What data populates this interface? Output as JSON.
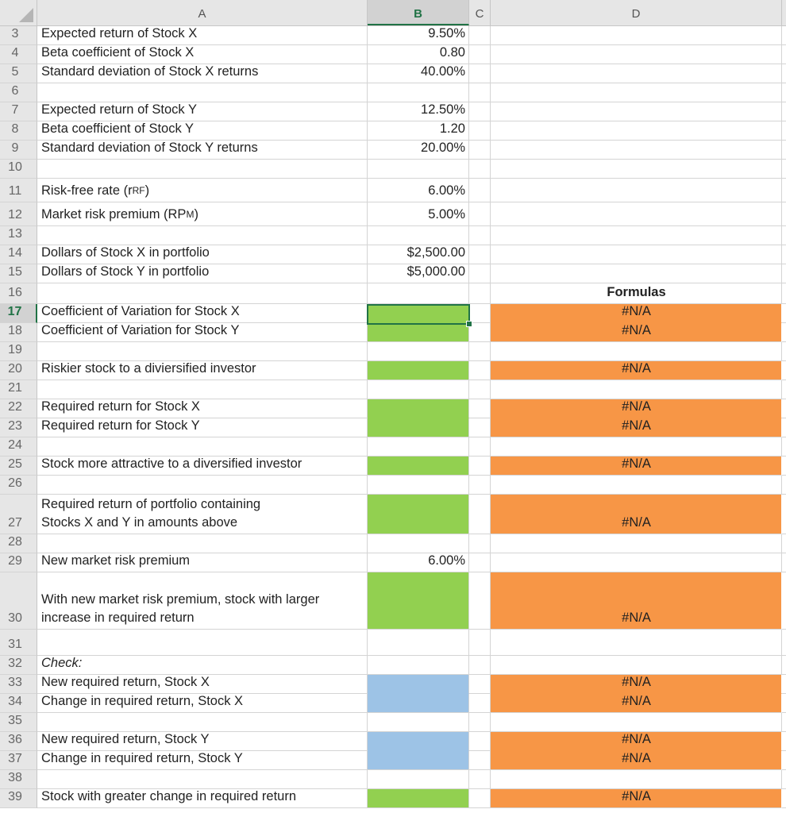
{
  "columns": [
    "A",
    "B",
    "C",
    "D"
  ],
  "selected_cell": {
    "row": 17,
    "col": "B"
  },
  "colors": {
    "green": "#92D050",
    "orange": "#F79646",
    "blue": "#9DC3E6",
    "selection": "#217346"
  },
  "rows": [
    {
      "n": 3,
      "h": 24,
      "a": "Expected return of Stock X",
      "b": "9.50%"
    },
    {
      "n": 4,
      "h": 24,
      "a": "Beta coefficient of Stock X",
      "b": "0.80"
    },
    {
      "n": 5,
      "h": 24,
      "a": "Standard deviation of Stock X returns",
      "b": "40.00%"
    },
    {
      "n": 6,
      "h": 24
    },
    {
      "n": 7,
      "h": 24,
      "a": "Expected return of Stock Y",
      "b": "12.50%"
    },
    {
      "n": 8,
      "h": 24,
      "a": "Beta coefficient of Stock Y",
      "b": "1.20"
    },
    {
      "n": 9,
      "h": 24,
      "a": "Standard deviation of Stock Y returns",
      "b": "20.00%"
    },
    {
      "n": 10,
      "h": 24
    },
    {
      "n": 11,
      "h": 30,
      "a": "Risk-free rate (r",
      "a_sub": "RF",
      "a_end": ")",
      "b": "6.00%"
    },
    {
      "n": 12,
      "h": 30,
      "a": "Market risk premium (RP",
      "a_sub": "M",
      "a_end": ")",
      "b": "5.00%"
    },
    {
      "n": 13,
      "h": 24
    },
    {
      "n": 14,
      "h": 24,
      "a": "Dollars of Stock X in portfolio",
      "b": "$2,500.00"
    },
    {
      "n": 15,
      "h": 24,
      "a": "Dollars of Stock Y in portfolio",
      "b": "$5,000.00"
    },
    {
      "n": 16,
      "h": 26,
      "d": "Formulas",
      "d_bold": true
    },
    {
      "n": 17,
      "h": 24,
      "a": "Coefficient of Variation for Stock X",
      "bfill": "green",
      "d": "#N/A",
      "dfill": "orange"
    },
    {
      "n": 18,
      "h": 24,
      "a": "Coefficient of Variation for Stock Y",
      "bfill": "green",
      "d": "#N/A",
      "dfill": "orange"
    },
    {
      "n": 19,
      "h": 24
    },
    {
      "n": 20,
      "h": 24,
      "a": "Riskier stock to a diviersified investor",
      "bfill": "green",
      "d": "#N/A",
      "dfill": "orange"
    },
    {
      "n": 21,
      "h": 24
    },
    {
      "n": 22,
      "h": 24,
      "a": "Required return for Stock X",
      "bfill": "green",
      "d": "#N/A",
      "dfill": "orange"
    },
    {
      "n": 23,
      "h": 24,
      "a": "Required return for Stock Y",
      "bfill": "green",
      "d": "#N/A",
      "dfill": "orange"
    },
    {
      "n": 24,
      "h": 24
    },
    {
      "n": 25,
      "h": 24,
      "a": "Stock more attractive to a diversified investor",
      "bfill": "green",
      "d": "#N/A",
      "dfill": "orange"
    },
    {
      "n": 26,
      "h": 24
    },
    {
      "n": 27,
      "h": 50,
      "a": "Required return of portfolio containing\nStocks X and Y in amounts above",
      "bfill": "green",
      "d": "#N/A",
      "dfill": "orange"
    },
    {
      "n": 28,
      "h": 24
    },
    {
      "n": 29,
      "h": 24,
      "a": "New market risk premium",
      "b": "6.00%"
    },
    {
      "n": 30,
      "h": 72,
      "a": "With new market risk premium, stock with larger\nincrease in required return",
      "bfill": "green",
      "d": "#N/A",
      "dfill": "orange"
    },
    {
      "n": 31,
      "h": 33
    },
    {
      "n": 32,
      "h": 24,
      "a": "Check:",
      "a_italic": true
    },
    {
      "n": 33,
      "h": 24,
      "a": "New required return, Stock X",
      "bfill": "blue",
      "d": "#N/A",
      "dfill": "orange"
    },
    {
      "n": 34,
      "h": 24,
      "a": "Change in required return, Stock X",
      "bfill": "blue",
      "d": "#N/A",
      "dfill": "orange"
    },
    {
      "n": 35,
      "h": 24
    },
    {
      "n": 36,
      "h": 24,
      "a": "New required return, Stock Y",
      "bfill": "blue",
      "d": "#N/A",
      "dfill": "orange"
    },
    {
      "n": 37,
      "h": 24,
      "a": "Change in required return, Stock Y",
      "bfill": "blue",
      "d": "#N/A",
      "dfill": "orange"
    },
    {
      "n": 38,
      "h": 24
    },
    {
      "n": 39,
      "h": 24,
      "a": "Stock with greater change in required return",
      "bfill": "green",
      "d": "#N/A",
      "dfill": "orange"
    }
  ]
}
